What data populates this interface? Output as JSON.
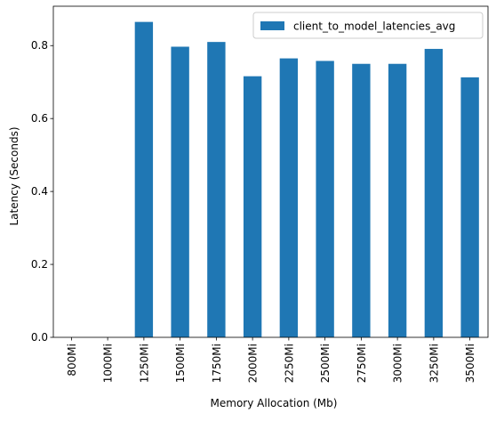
{
  "chart_data": {
    "type": "bar",
    "categories": [
      "800Mi",
      "1000Mi",
      "1250Mi",
      "1500Mi",
      "1750Mi",
      "2000Mi",
      "2250Mi",
      "2500Mi",
      "2750Mi",
      "3000Mi",
      "3250Mi",
      "3500Mi"
    ],
    "series": [
      {
        "name": "client_to_model_latencies_avg",
        "values": [
          0,
          0,
          0.865,
          0.797,
          0.81,
          0.716,
          0.765,
          0.758,
          0.75,
          0.75,
          0.791,
          0.713
        ],
        "color": "#1f77b4"
      }
    ],
    "title": "",
    "xlabel": "Memory Allocation (Mb)",
    "ylabel": "Latency (Seconds)",
    "ylim": [
      0,
      0.908
    ],
    "yticks": [
      0.0,
      0.2,
      0.4,
      0.6,
      0.8
    ],
    "ytick_labels": [
      "0.0",
      "0.2",
      "0.4",
      "0.6",
      "0.8"
    ],
    "grid": false,
    "legend_position": "top-right"
  }
}
